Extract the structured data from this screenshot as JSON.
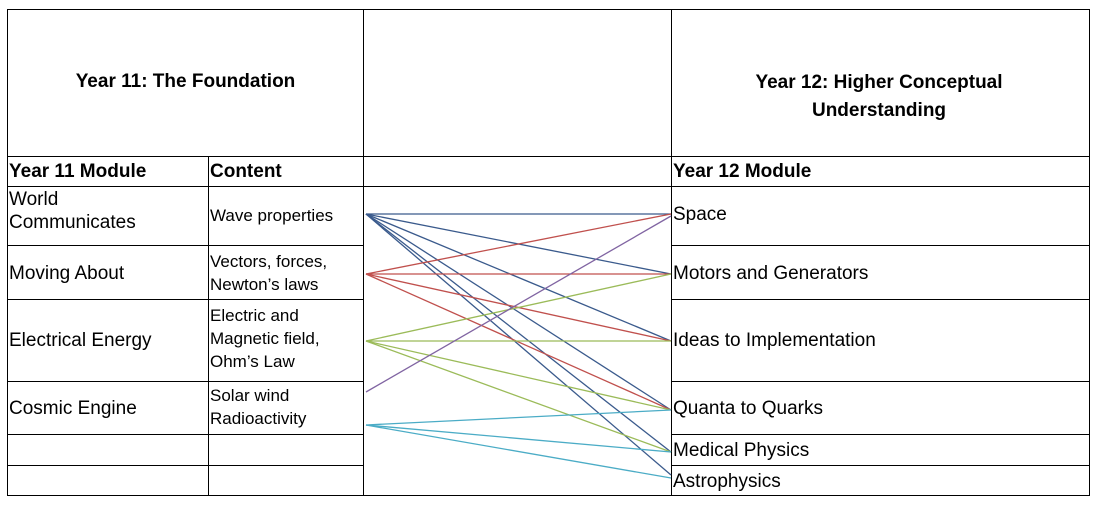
{
  "header": {
    "year11_title": "Year 11: The Foundation",
    "year12_title": "Year 12: Higher Conceptual Understanding"
  },
  "columns": {
    "year11_module": "Year 11 Module",
    "content": "Content",
    "year12_module": "Year 12 Module"
  },
  "year11_rows": [
    {
      "module": "World\nCommunicates",
      "content": "Wave properties"
    },
    {
      "module": "Moving About",
      "content": "Vectors, forces,\nNewton’s laws"
    },
    {
      "module": "Electrical Energy",
      "content": "Electric and\nMagnetic field,\nOhm’s Law"
    },
    {
      "module": "Cosmic Engine",
      "content": "Solar wind\nRadioactivity"
    }
  ],
  "year12_modules": [
    "Space",
    "Motors and Generators",
    "Ideas to Implementation",
    "Quanta to Quarks",
    "Medical Physics",
    "Astrophysics"
  ],
  "colors": {
    "wave": "#3a5a8c",
    "forces": "#c0504d",
    "electrical": "#9bbb59",
    "cosmic": "#8064a2",
    "solar": "#4bacc6",
    "border": "#000000"
  },
  "connections": [
    {
      "from": "Wave properties",
      "to": "Space",
      "color": "wave"
    },
    {
      "from": "Wave properties",
      "to": "Motors and Generators",
      "color": "wave"
    },
    {
      "from": "Wave properties",
      "to": "Ideas to Implementation",
      "color": "wave"
    },
    {
      "from": "Wave properties",
      "to": "Quanta to Quarks",
      "color": "wave"
    },
    {
      "from": "Wave properties",
      "to": "Medical Physics",
      "color": "wave"
    },
    {
      "from": "Wave properties",
      "to": "Astrophysics",
      "color": "wave"
    },
    {
      "from": "Vectors, forces, Newton’s laws",
      "to": "Space",
      "color": "forces"
    },
    {
      "from": "Vectors, forces, Newton’s laws",
      "to": "Motors and Generators",
      "color": "forces"
    },
    {
      "from": "Vectors, forces, Newton’s laws",
      "to": "Ideas to Implementation",
      "color": "forces"
    },
    {
      "from": "Vectors, forces, Newton’s laws",
      "to": "Quanta to Quarks",
      "color": "forces"
    },
    {
      "from": "Electric and Magnetic field, Ohm’s Law",
      "to": "Motors and Generators",
      "color": "electrical"
    },
    {
      "from": "Electric and Magnetic field, Ohm’s Law",
      "to": "Ideas to Implementation",
      "color": "electrical"
    },
    {
      "from": "Electric and Magnetic field, Ohm’s Law",
      "to": "Quanta to Quarks",
      "color": "electrical"
    },
    {
      "from": "Electric and Magnetic field, Ohm’s Law",
      "to": "Medical Physics",
      "color": "electrical"
    },
    {
      "from": "Solar wind",
      "to": "Space",
      "color": "cosmic"
    },
    {
      "from": "Radioactivity",
      "to": "Quanta to Quarks",
      "color": "solar"
    },
    {
      "from": "Radioactivity",
      "to": "Medical Physics",
      "color": "solar"
    },
    {
      "from": "Radioactivity",
      "to": "Astrophysics",
      "color": "solar"
    }
  ]
}
